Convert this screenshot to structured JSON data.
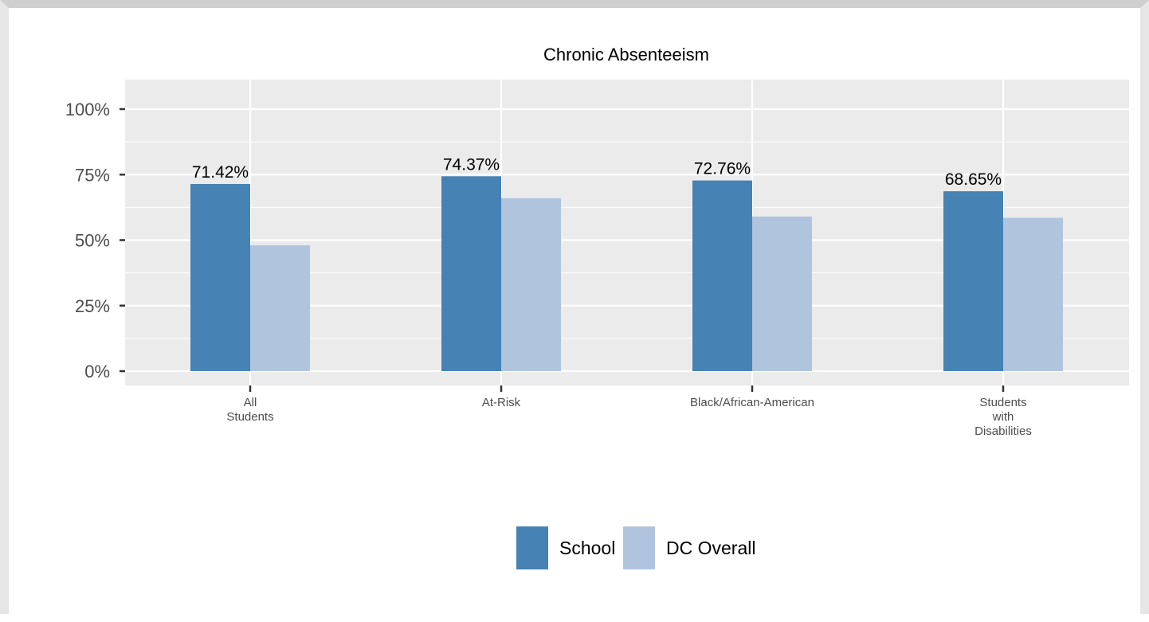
{
  "chart_data": {
    "type": "bar",
    "title": "Chronic Absenteeism",
    "xlabel": "",
    "ylabel": "",
    "ylim": [
      0,
      1.1
    ],
    "y_ticks": [
      {
        "value": 0,
        "label": "0%"
      },
      {
        "value": 0.25,
        "label": "25%"
      },
      {
        "value": 0.5,
        "label": "50%"
      },
      {
        "value": 0.75,
        "label": "75%"
      },
      {
        "value": 1.0,
        "label": "100%"
      }
    ],
    "categories": [
      [
        "All",
        "Students"
      ],
      [
        "At-Risk"
      ],
      [
        "Black/African-American"
      ],
      [
        "Students",
        "with",
        "Disabilities"
      ]
    ],
    "series": [
      {
        "name": "School",
        "color": "#4682b4",
        "values": [
          0.7142,
          0.7437,
          0.7276,
          0.6865
        ],
        "labels": [
          "71.42%",
          "74.37%",
          "72.76%",
          "68.65%"
        ]
      },
      {
        "name": "DC Overall",
        "color": "#b0c4de",
        "values": [
          0.48,
          0.66,
          0.59,
          0.585
        ],
        "labels": []
      }
    ],
    "grid": true,
    "panel_background": "#ebebeb",
    "legend_position": "bottom"
  }
}
